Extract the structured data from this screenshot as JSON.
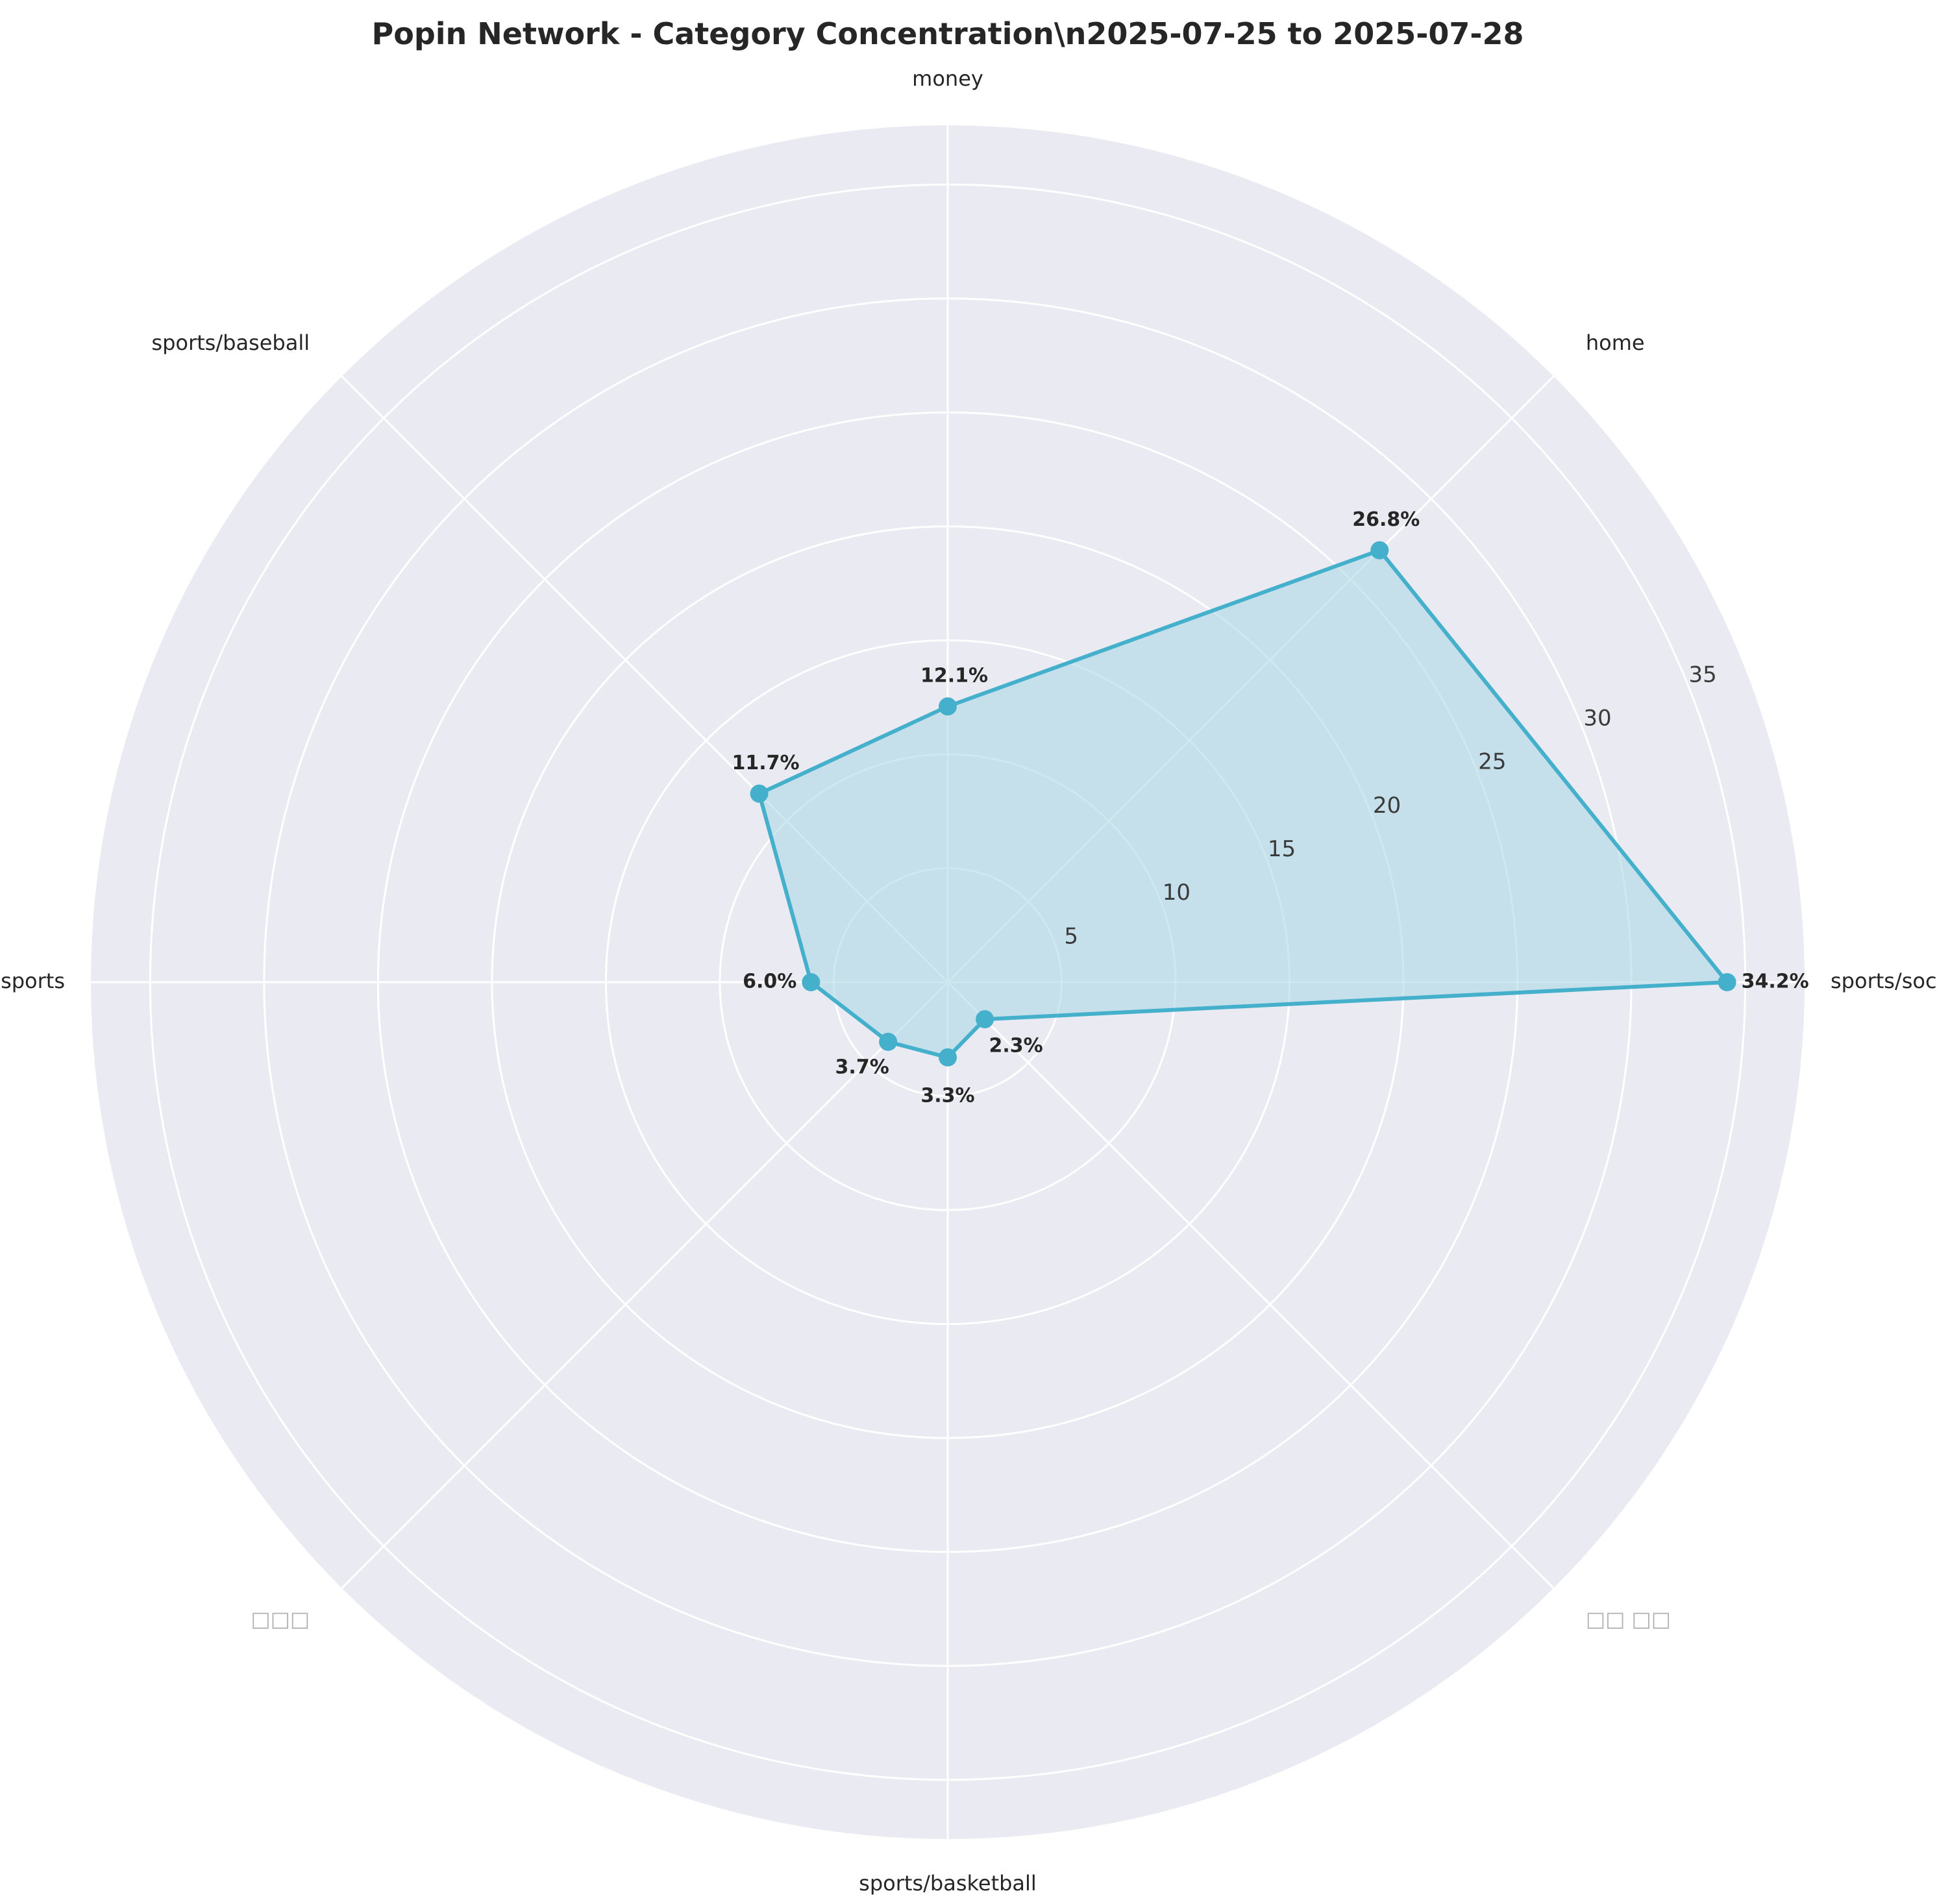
{
  "chart_data": {
    "type": "radar",
    "title": "Popin Network - Category Concentration\\n2025-07-25 to 2025-07-28",
    "categories": [
      "sports/soccer",
      "home",
      "money",
      "sports/baseball",
      "sports",
      "□□□",
      "sports/basketball",
      "□□ □□"
    ],
    "values": [
      34.2,
      26.8,
      12.1,
      11.7,
      6.0,
      3.7,
      3.3,
      2.3
    ],
    "value_labels": [
      "34.2%",
      "26.8%",
      "12.1%",
      "11.7%",
      "6.0%",
      "3.7%",
      "3.3%",
      "2.3%"
    ],
    "radial_ticks": [
      5,
      10,
      15,
      20,
      25,
      30,
      35
    ],
    "radial_tick_labels": [
      "5",
      "10",
      "15",
      "20",
      "25",
      "30",
      "35"
    ],
    "rmax": 37.6,
    "grid": true,
    "colors": {
      "line": "#45b0cb",
      "fill": "#add8e6",
      "background": "#eaeaf2",
      "grid": "#ffffff"
    }
  }
}
